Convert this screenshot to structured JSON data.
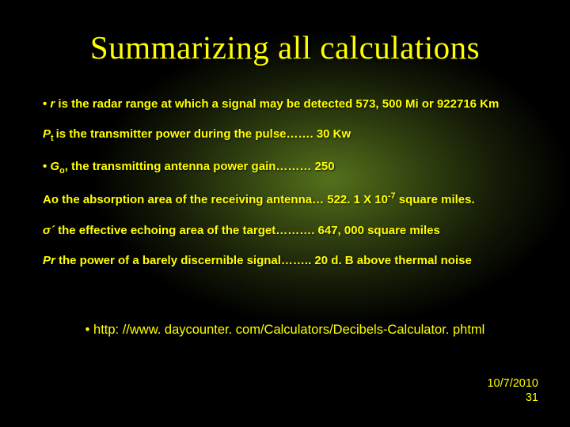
{
  "slide": {
    "title": "Summarizing all calculations",
    "background": {
      "base_color": "#000000",
      "spotlight_center_color": "#9acd32",
      "spotlight_mid_color": "#6b8e23",
      "spotlight_edge_color": "#3c5014"
    },
    "text_color": "#ffff00",
    "title_font": "Times New Roman",
    "body_font": "Arial",
    "title_fontsize": 41,
    "body_fontsize": 15,
    "lines": {
      "r_prefix": "• ",
      "r_sym": "r",
      "r_rest": "  is the radar range at which a signal may be detected 573, 500 Mi or 922716 Km",
      "pt_sym": "P",
      "pt_sub": "t ",
      "pt_rest": "is the transmitter power during the pulse……. 30 Kw",
      "go_prefix": "• ",
      "go_sym": "G",
      "go_sub": "o",
      "go_rest": ", the transmitting antenna power gain……… 250",
      "ao_sym": "Ao",
      "ao_text1": " the absorption area of the receiving antenna… 522. 1 X 10",
      "ao_sup": "-7",
      "ao_text2": " square miles.",
      "sigma_sym": "σ´",
      "sigma_rest": "  the effective echoing area of the target………. 647, 000 square miles",
      "pr_sym": "Pr",
      "pr_rest": "  the power of a barely discernible signal…….. 20 d. B above thermal noise"
    },
    "link": "• http: //www. daycounter. com/Calculators/Decibels-Calculator. phtml",
    "footer_date": "10/7/2010",
    "footer_page": "31"
  }
}
